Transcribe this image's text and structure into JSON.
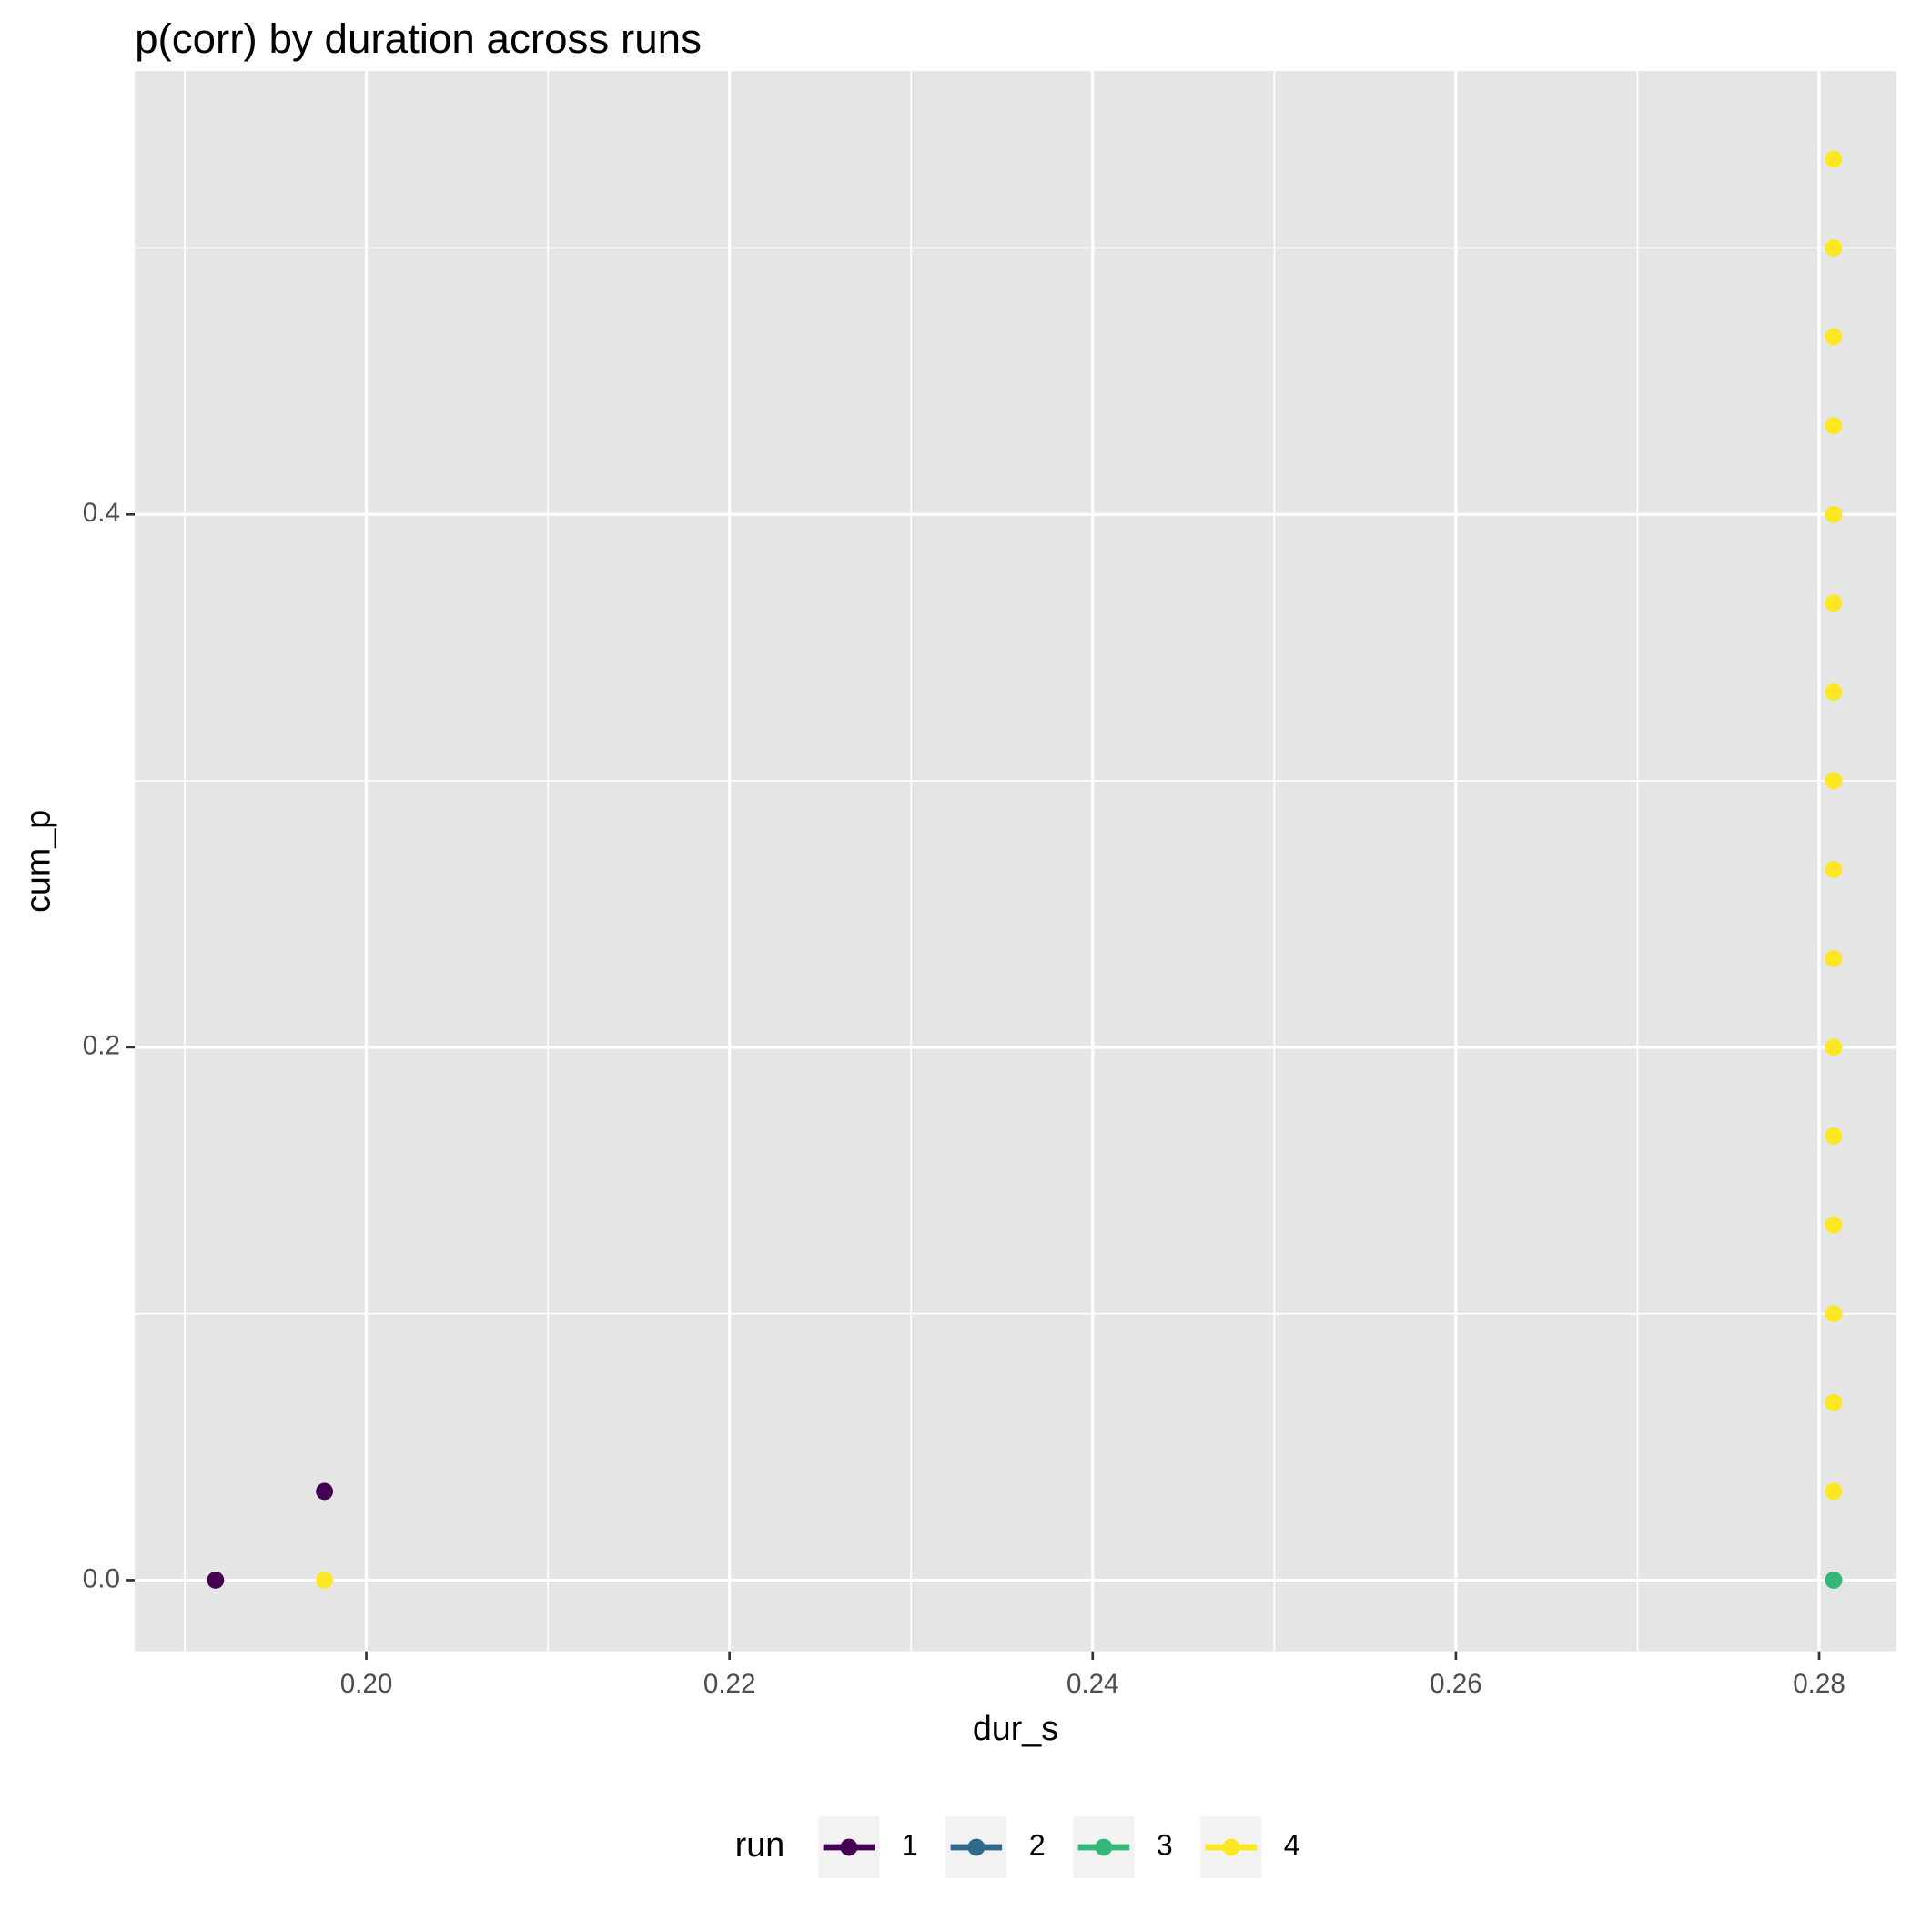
{
  "chart_data": {
    "type": "scatter",
    "title": "p(corr) by duration across runs",
    "x_label": "dur_s",
    "y_label": "cum_p",
    "legend_title": "run",
    "legend_position": "bottom",
    "grid": true,
    "xlim": [
      0.18725,
      0.28425
    ],
    "ylim": [
      -0.0267,
      0.5664
    ],
    "xticks": [
      {
        "value": 0.2,
        "label": "0.20"
      },
      {
        "value": 0.22,
        "label": "0.22"
      },
      {
        "value": 0.24,
        "label": "0.24"
      },
      {
        "value": 0.26,
        "label": "0.26"
      },
      {
        "value": 0.28,
        "label": "0.28"
      }
    ],
    "yticks": [
      {
        "value": 0,
        "label": "0.0"
      },
      0.2,
      0.4
    ],
    "x_minor_grid": [
      0.19,
      0.21,
      0.23,
      0.25,
      0.27
    ],
    "y_minor_grid": [
      0.1,
      0.3,
      0.5
    ],
    "series": [
      {
        "name": "1",
        "color": "#440154",
        "x": [
          0.1917,
          0.1977
        ],
        "values": [
          0,
          0.0333
        ]
      },
      {
        "name": "2",
        "color": "#31688E",
        "x": [
          0.2808
        ],
        "values": [
          0
        ]
      },
      {
        "name": "3",
        "color": "#35B779",
        "x": [
          0.2808
        ],
        "values": [
          0
        ]
      },
      {
        "name": "4",
        "color": "#FDE725",
        "x": [
          0.1977,
          0.2808,
          0.2808,
          0.2808,
          0.2808,
          0.2808,
          0.2808,
          0.2808,
          0.2808,
          0.2808,
          0.2808,
          0.2808,
          0.2808,
          0.2808,
          0.2808,
          0.2808,
          0.2808
        ],
        "values": [
          0,
          0.0333,
          0.0667,
          0.1,
          0.1333,
          0.1667,
          0.2,
          0.2333,
          0.2667,
          0.3,
          0.3333,
          0.3667,
          0.4,
          0.4333,
          0.4667,
          0.5,
          0.5333
        ]
      }
    ]
  }
}
